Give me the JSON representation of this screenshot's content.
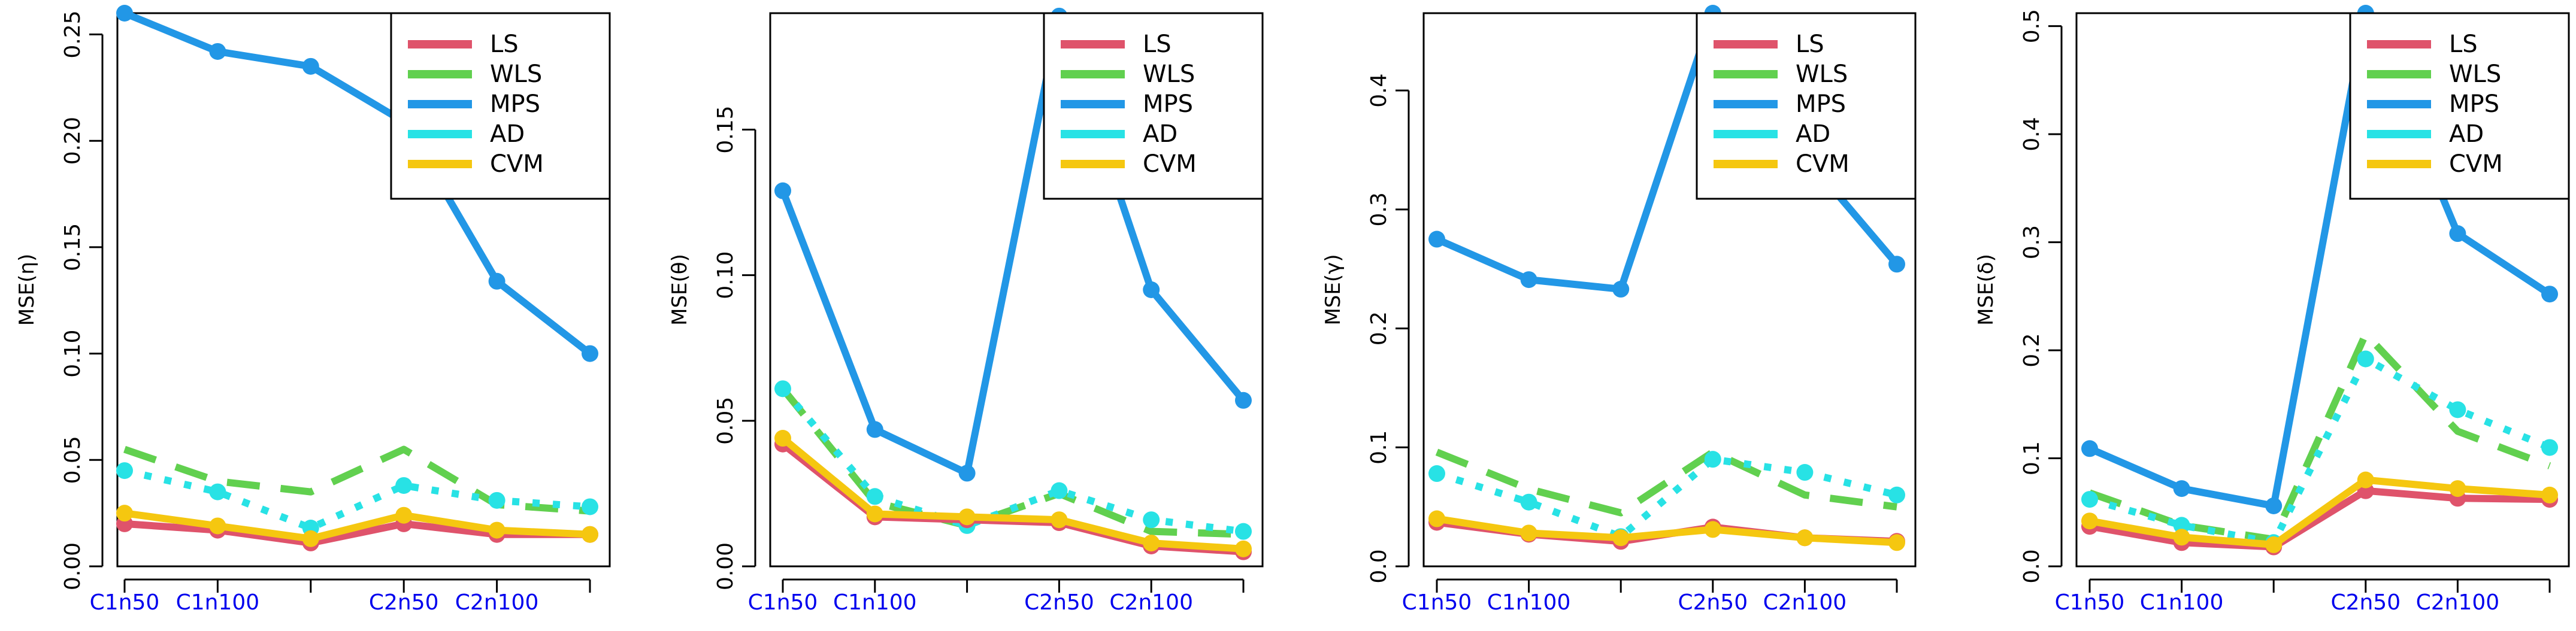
{
  "legend_labels": [
    "LS",
    "WLS",
    "MPS",
    "AD",
    "CVM"
  ],
  "colors": {
    "LS": "#DF536B",
    "WLS": "#61D04F",
    "MPS": "#2297E6",
    "AD": "#28E2E5",
    "CVM": "#F5C710",
    "tick_label": "#0000ee",
    "axis": "#000000"
  },
  "chart_data": [
    {
      "type": "line",
      "title": "",
      "xlabel": "",
      "ylabel": "MSE(η)",
      "x_tick_labels": [
        "C1n50",
        "C1n100",
        "",
        "C2n50",
        "C2n100",
        ""
      ],
      "categories": [
        "C1n50",
        "C1n100",
        "",
        "C2n50",
        "C2n100",
        ""
      ],
      "ylim": [
        0,
        0.26
      ],
      "yticks": [
        0.0,
        0.05,
        0.1,
        0.15,
        0.2,
        0.25
      ],
      "ytick_labels": [
        "0.00",
        "0.05",
        "0.10",
        "0.15",
        "0.20",
        "0.25"
      ],
      "legend": "top-right",
      "series": [
        {
          "name": "LS",
          "values": [
            0.02,
            0.017,
            0.011,
            0.02,
            0.015,
            0.015
          ]
        },
        {
          "name": "WLS",
          "values": [
            0.055,
            0.04,
            0.035,
            0.055,
            0.029,
            0.026
          ]
        },
        {
          "name": "MPS",
          "values": [
            0.26,
            0.242,
            0.235,
            0.209,
            0.134,
            0.1
          ]
        },
        {
          "name": "AD",
          "values": [
            0.045,
            0.035,
            0.018,
            0.038,
            0.031,
            0.028
          ]
        },
        {
          "name": "CVM",
          "values": [
            0.025,
            0.019,
            0.013,
            0.024,
            0.017,
            0.015
          ]
        }
      ]
    },
    {
      "type": "line",
      "title": "",
      "xlabel": "",
      "ylabel": "MSE(θ)",
      "x_tick_labels": [
        "C1n50",
        "C1n100",
        "",
        "C2n50",
        "C2n100",
        ""
      ],
      "categories": [
        "C1n50",
        "C1n100",
        "",
        "C2n50",
        "C2n100",
        ""
      ],
      "ylim": [
        0,
        0.19
      ],
      "yticks": [
        0.0,
        0.05,
        0.1,
        0.15
      ],
      "ytick_labels": [
        "0.00",
        "0.05",
        "0.10",
        "0.15"
      ],
      "legend": "top-right",
      "series": [
        {
          "name": "LS",
          "values": [
            0.042,
            0.017,
            0.016,
            0.015,
            0.007,
            0.005
          ]
        },
        {
          "name": "WLS",
          "values": [
            0.061,
            0.022,
            0.014,
            0.025,
            0.012,
            0.011
          ]
        },
        {
          "name": "MPS",
          "values": [
            0.129,
            0.047,
            0.032,
            0.189,
            0.095,
            0.057
          ]
        },
        {
          "name": "AD",
          "values": [
            0.061,
            0.024,
            0.014,
            0.026,
            0.016,
            0.012
          ]
        },
        {
          "name": "CVM",
          "values": [
            0.044,
            0.018,
            0.017,
            0.016,
            0.008,
            0.006
          ]
        }
      ]
    },
    {
      "type": "line",
      "title": "",
      "xlabel": "",
      "ylabel": "MSE(γ)",
      "x_tick_labels": [
        "C1n50",
        "C1n100",
        "",
        "C2n50",
        "C2n100",
        ""
      ],
      "categories": [
        "C1n50",
        "C1n100",
        "",
        "C2n50",
        "C2n100",
        ""
      ],
      "ylim": [
        0,
        0.465
      ],
      "yticks": [
        0.0,
        0.1,
        0.2,
        0.3,
        0.4
      ],
      "ytick_labels": [
        "0.0",
        "0.1",
        "0.2",
        "0.3",
        "0.4"
      ],
      "legend": "top-right",
      "series": [
        {
          "name": "LS",
          "values": [
            0.037,
            0.027,
            0.021,
            0.033,
            0.024,
            0.021
          ]
        },
        {
          "name": "WLS",
          "values": [
            0.096,
            0.065,
            0.045,
            0.096,
            0.06,
            0.05
          ]
        },
        {
          "name": "MPS",
          "values": [
            0.275,
            0.241,
            0.233,
            0.465,
            0.345,
            0.254
          ]
        },
        {
          "name": "AD",
          "values": [
            0.078,
            0.054,
            0.025,
            0.09,
            0.079,
            0.06
          ]
        },
        {
          "name": "CVM",
          "values": [
            0.04,
            0.028,
            0.024,
            0.031,
            0.024,
            0.02
          ]
        }
      ]
    },
    {
      "type": "line",
      "title": "",
      "xlabel": "",
      "ylabel": "MSE(δ)",
      "x_tick_labels": [
        "C1n50",
        "C1n100",
        "",
        "C2n50",
        "C2n100",
        ""
      ],
      "categories": [
        "C1n50",
        "C1n100",
        "",
        "C2n50",
        "C2n100",
        ""
      ],
      "ylim": [
        0,
        0.512
      ],
      "yticks": [
        0.0,
        0.1,
        0.2,
        0.3,
        0.4,
        0.5
      ],
      "ytick_labels": [
        "0.0",
        "0.1",
        "0.2",
        "0.3",
        "0.4",
        "0.5"
      ],
      "legend": "top-right",
      "series": [
        {
          "name": "LS",
          "values": [
            0.037,
            0.022,
            0.018,
            0.07,
            0.063,
            0.062
          ]
        },
        {
          "name": "WLS",
          "values": [
            0.068,
            0.038,
            0.025,
            0.215,
            0.125,
            0.093
          ]
        },
        {
          "name": "MPS",
          "values": [
            0.109,
            0.072,
            0.056,
            0.512,
            0.308,
            0.252
          ]
        },
        {
          "name": "AD",
          "values": [
            0.062,
            0.038,
            0.022,
            0.192,
            0.145,
            0.11
          ]
        },
        {
          "name": "CVM",
          "values": [
            0.042,
            0.027,
            0.02,
            0.08,
            0.072,
            0.066
          ]
        }
      ]
    }
  ]
}
